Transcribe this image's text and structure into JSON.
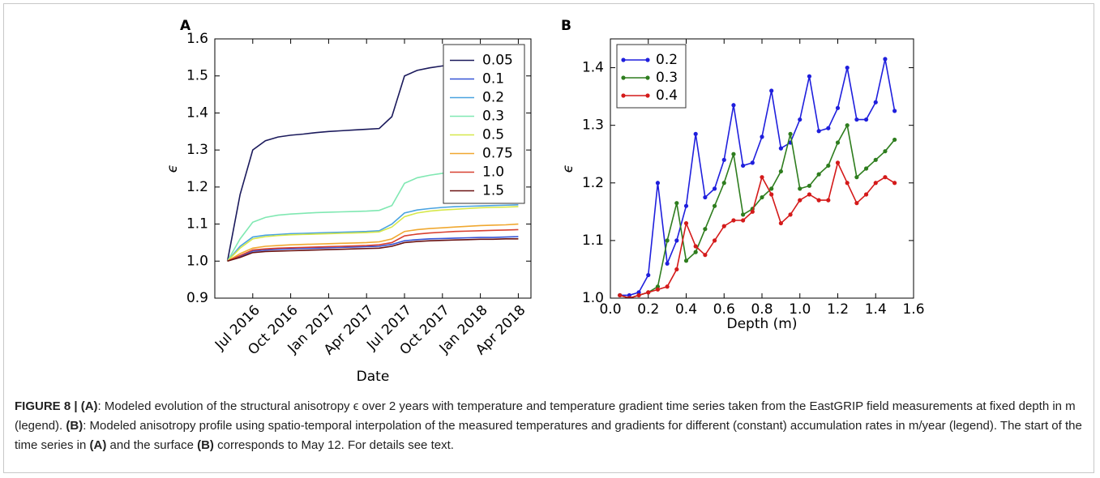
{
  "chart_data": [
    {
      "type": "line",
      "label": "A",
      "xlabel": "Date",
      "ylabel": "ϵ",
      "x": [
        "2016-05",
        "2016-06",
        "2016-07",
        "2016-08",
        "2016-09",
        "2016-10",
        "2016-11",
        "2016-12",
        "2017-01",
        "2017-02",
        "2017-03",
        "2017-04",
        "2017-05",
        "2017-06",
        "2017-07",
        "2017-08",
        "2017-09",
        "2017-10",
        "2017-11",
        "2017-12",
        "2018-01",
        "2018-02",
        "2018-03",
        "2018-04"
      ],
      "xlim": [
        "2016-04",
        "2018-05"
      ],
      "xticks": [
        {
          "value": "2016-07",
          "label": "Jul 2016"
        },
        {
          "value": "2016-10",
          "label": "Oct 2016"
        },
        {
          "value": "2017-01",
          "label": "Jan 2017"
        },
        {
          "value": "2017-04",
          "label": "Apr 2017"
        },
        {
          "value": "2017-07",
          "label": "Jul 2017"
        },
        {
          "value": "2017-10",
          "label": "Oct 2017"
        },
        {
          "value": "2018-01",
          "label": "Jan 2018"
        },
        {
          "value": "2018-04",
          "label": "Apr 2018"
        }
      ],
      "ylim": [
        0.9,
        1.6
      ],
      "yticks": [
        0.9,
        {
          "value": 1,
          "label": "1.0"
        },
        1.1,
        1.2,
        1.3,
        1.4,
        1.5,
        1.6
      ],
      "legend": "upper right",
      "marker": false,
      "series": [
        {
          "name": "0.05",
          "color": "#1b1a5c",
          "values": [
            1.0,
            1.18,
            1.3,
            1.325,
            1.335,
            1.34,
            1.343,
            1.347,
            1.35,
            1.352,
            1.354,
            1.356,
            1.358,
            1.39,
            1.5,
            1.515,
            1.522,
            1.527,
            1.53,
            1.532,
            1.533,
            1.534,
            1.535,
            1.536
          ]
        },
        {
          "name": "0.1",
          "color": "#3553d6",
          "values": [
            1.0,
            1.012,
            1.027,
            1.03,
            1.032,
            1.033,
            1.034,
            1.035,
            1.036,
            1.037,
            1.038,
            1.039,
            1.04,
            1.045,
            1.055,
            1.058,
            1.06,
            1.061,
            1.062,
            1.063,
            1.064,
            1.064,
            1.065,
            1.066
          ]
        },
        {
          "name": "0.2",
          "color": "#4aa3e0",
          "values": [
            1.0,
            1.04,
            1.065,
            1.07,
            1.072,
            1.074,
            1.075,
            1.076,
            1.077,
            1.078,
            1.079,
            1.08,
            1.082,
            1.1,
            1.13,
            1.138,
            1.142,
            1.145,
            1.147,
            1.148,
            1.149,
            1.15,
            1.151,
            1.152
          ]
        },
        {
          "name": "0.3",
          "color": "#80e8b2",
          "values": [
            1.0,
            1.06,
            1.105,
            1.118,
            1.124,
            1.127,
            1.129,
            1.131,
            1.132,
            1.133,
            1.134,
            1.135,
            1.137,
            1.15,
            1.21,
            1.225,
            1.232,
            1.237,
            1.24,
            1.242,
            1.244,
            1.245,
            1.246,
            1.247
          ]
        },
        {
          "name": "0.5",
          "color": "#d6e84a",
          "values": [
            1.0,
            1.035,
            1.06,
            1.066,
            1.069,
            1.071,
            1.072,
            1.073,
            1.074,
            1.075,
            1.076,
            1.077,
            1.079,
            1.092,
            1.12,
            1.13,
            1.135,
            1.138,
            1.14,
            1.142,
            1.144,
            1.145,
            1.146,
            1.147
          ]
        },
        {
          "name": "0.75",
          "color": "#f0a830",
          "values": [
            1.0,
            1.02,
            1.035,
            1.04,
            1.042,
            1.044,
            1.045,
            1.046,
            1.047,
            1.048,
            1.049,
            1.05,
            1.052,
            1.06,
            1.08,
            1.085,
            1.088,
            1.09,
            1.092,
            1.094,
            1.096,
            1.097,
            1.098,
            1.1
          ]
        },
        {
          "name": "1.0",
          "color": "#d84030",
          "values": [
            1.0,
            1.015,
            1.03,
            1.033,
            1.035,
            1.036,
            1.037,
            1.038,
            1.039,
            1.04,
            1.041,
            1.042,
            1.044,
            1.05,
            1.068,
            1.073,
            1.076,
            1.078,
            1.08,
            1.081,
            1.082,
            1.083,
            1.084,
            1.085
          ]
        },
        {
          "name": "1.5",
          "color": "#6a1212",
          "values": [
            1.0,
            1.01,
            1.023,
            1.026,
            1.027,
            1.028,
            1.029,
            1.03,
            1.031,
            1.032,
            1.033,
            1.034,
            1.035,
            1.04,
            1.05,
            1.053,
            1.055,
            1.056,
            1.057,
            1.058,
            1.059,
            1.059,
            1.06,
            1.06
          ]
        }
      ]
    },
    {
      "type": "line",
      "label": "B",
      "xlabel": "Depth (m)",
      "ylabel": "ϵ",
      "x": [
        0.05,
        0.1,
        0.15,
        0.2,
        0.25,
        0.3,
        0.35,
        0.4,
        0.45,
        0.5,
        0.55,
        0.6,
        0.65,
        0.7,
        0.75,
        0.8,
        0.85,
        0.9,
        0.95,
        1.0,
        1.05,
        1.1,
        1.15,
        1.2,
        1.25,
        1.3,
        1.35,
        1.4,
        1.45,
        1.5
      ],
      "xlim": [
        0,
        1.6
      ],
      "xticks": [
        {
          "value": 0,
          "label": "0.0"
        },
        0.2,
        0.4,
        0.6,
        0.8,
        {
          "value": 1,
          "label": "1.0"
        },
        1.2,
        1.4,
        1.6
      ],
      "ylim": [
        1.0,
        1.45
      ],
      "yticks": [
        {
          "value": 1,
          "label": "1.0"
        },
        1.1,
        1.2,
        1.3,
        1.4
      ],
      "legend": "upper left",
      "marker": true,
      "series": [
        {
          "name": "0.2",
          "color": "#1f1fdd",
          "values": [
            1.005,
            1.005,
            1.01,
            1.04,
            1.2,
            1.06,
            1.1,
            1.16,
            1.285,
            1.175,
            1.19,
            1.24,
            1.335,
            1.23,
            1.235,
            1.28,
            1.36,
            1.26,
            1.27,
            1.31,
            1.385,
            1.29,
            1.295,
            1.33,
            1.4,
            1.31,
            1.31,
            1.34,
            1.415,
            1.325
          ]
        },
        {
          "name": "0.3",
          "color": "#2e7d1e",
          "values": [
            1.005,
            1.0,
            1.005,
            1.01,
            1.02,
            1.1,
            1.165,
            1.065,
            1.08,
            1.12,
            1.16,
            1.2,
            1.25,
            1.145,
            1.155,
            1.175,
            1.19,
            1.22,
            1.285,
            1.19,
            1.195,
            1.215,
            1.23,
            1.27,
            1.3,
            1.21,
            1.225,
            1.24,
            1.255,
            1.275
          ]
        },
        {
          "name": "0.4",
          "color": "#d41a1a",
          "values": [
            1.005,
            1.0,
            1.005,
            1.01,
            1.015,
            1.02,
            1.05,
            1.13,
            1.09,
            1.075,
            1.1,
            1.125,
            1.135,
            1.135,
            1.15,
            1.21,
            1.18,
            1.13,
            1.145,
            1.17,
            1.18,
            1.17,
            1.17,
            1.235,
            1.2,
            1.165,
            1.18,
            1.2,
            1.21,
            1.2
          ]
        }
      ]
    }
  ],
  "caption": [
    {
      "text": "FIGURE 8 | (A)",
      "bold": true
    },
    {
      "text": ": Modeled evolution of the structural anisotropy ϵ over 2 years with temperature and temperature gradient time series taken from the EastGRIP field measurements at fixed depth in m (legend). ",
      "bold": false
    },
    {
      "text": "(B)",
      "bold": true
    },
    {
      "text": ": Modeled anisotropy profile using spatio-temporal interpolation of the measured temperatures and gradients for different (constant) accumulation rates in m/year (legend). The start of the time series in ",
      "bold": false
    },
    {
      "text": "(A)",
      "bold": true
    },
    {
      "text": " and the surface ",
      "bold": false
    },
    {
      "text": "(B)",
      "bold": true
    },
    {
      "text": " corresponds to May 12. For details see text.",
      "bold": false
    }
  ]
}
